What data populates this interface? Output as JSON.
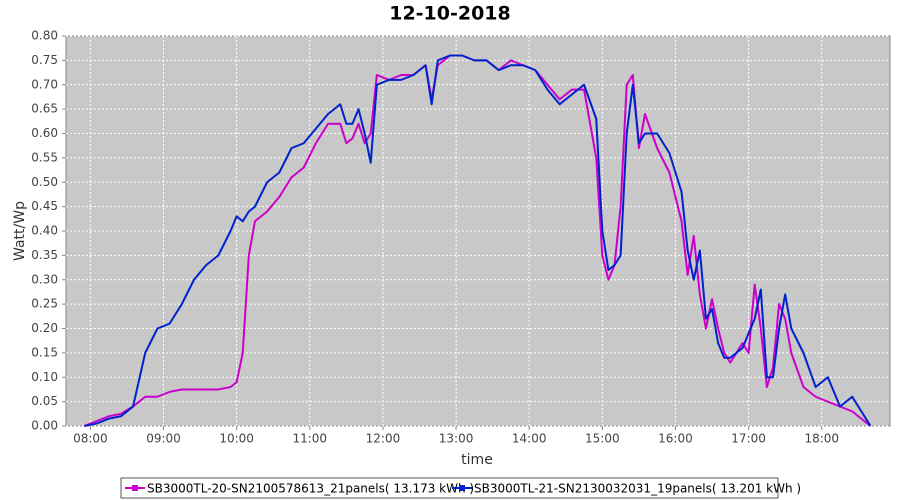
{
  "chart_data": {
    "type": "line",
    "title": "12-10-2018",
    "x_label": "time",
    "y_label": "Watt/Wp",
    "x": [
      "07:55",
      "08:05",
      "08:15",
      "08:25",
      "08:35",
      "08:45",
      "08:55",
      "09:05",
      "09:15",
      "09:25",
      "09:35",
      "09:45",
      "09:55",
      "10:00",
      "10:05",
      "10:10",
      "10:15",
      "10:25",
      "10:35",
      "10:45",
      "10:55",
      "11:05",
      "11:15",
      "11:25",
      "11:30",
      "11:35",
      "11:40",
      "11:45",
      "11:50",
      "11:55",
      "12:05",
      "12:15",
      "12:25",
      "12:35",
      "12:40",
      "12:45",
      "12:55",
      "13:05",
      "13:15",
      "13:25",
      "13:35",
      "13:45",
      "13:55",
      "14:05",
      "14:15",
      "14:25",
      "14:35",
      "14:45",
      "14:55",
      "15:00",
      "15:05",
      "15:10",
      "15:15",
      "15:20",
      "15:25",
      "15:30",
      "15:35",
      "15:45",
      "15:55",
      "16:05",
      "16:10",
      "16:15",
      "16:20",
      "16:25",
      "16:30",
      "16:35",
      "16:40",
      "16:45",
      "16:50",
      "16:55",
      "17:00",
      "17:05",
      "17:10",
      "17:15",
      "17:20",
      "17:25",
      "17:30",
      "17:35",
      "17:45",
      "17:55",
      "18:05",
      "18:15",
      "18:25",
      "18:35",
      "18:40"
    ],
    "series": [
      {
        "name": "SB3000TL-20-SN2100578613_21panels( 13.173 kWh )",
        "color": "#cc00cc",
        "values": [
          0.0,
          0.01,
          0.02,
          0.025,
          0.04,
          0.06,
          0.06,
          0.07,
          0.075,
          0.075,
          0.075,
          0.075,
          0.08,
          0.09,
          0.15,
          0.35,
          0.42,
          0.44,
          0.47,
          0.51,
          0.53,
          0.58,
          0.62,
          0.62,
          0.58,
          0.59,
          0.62,
          0.58,
          0.6,
          0.72,
          0.71,
          0.72,
          0.72,
          0.74,
          0.67,
          0.74,
          0.76,
          0.76,
          0.75,
          0.75,
          0.73,
          0.75,
          0.74,
          0.73,
          0.7,
          0.67,
          0.69,
          0.69,
          0.55,
          0.35,
          0.3,
          0.33,
          0.45,
          0.7,
          0.72,
          0.57,
          0.64,
          0.57,
          0.52,
          0.42,
          0.31,
          0.39,
          0.27,
          0.2,
          0.26,
          0.2,
          0.15,
          0.13,
          0.15,
          0.17,
          0.15,
          0.29,
          0.2,
          0.08,
          0.12,
          0.25,
          0.22,
          0.15,
          0.08,
          0.06,
          0.05,
          0.04,
          0.03,
          0.01,
          0.0
        ]
      },
      {
        "name": "SB3000TL-21-SN2130032031_19panels( 13.201 kWh )",
        "color": "#0022cc",
        "values": [
          0.0,
          0.005,
          0.015,
          0.02,
          0.04,
          0.15,
          0.2,
          0.21,
          0.25,
          0.3,
          0.33,
          0.35,
          0.4,
          0.43,
          0.42,
          0.44,
          0.45,
          0.5,
          0.52,
          0.57,
          0.58,
          0.61,
          0.64,
          0.66,
          0.62,
          0.62,
          0.65,
          0.6,
          0.54,
          0.7,
          0.71,
          0.71,
          0.72,
          0.74,
          0.66,
          0.75,
          0.76,
          0.76,
          0.75,
          0.75,
          0.73,
          0.74,
          0.74,
          0.73,
          0.69,
          0.66,
          0.68,
          0.7,
          0.63,
          0.4,
          0.32,
          0.33,
          0.35,
          0.6,
          0.7,
          0.58,
          0.6,
          0.6,
          0.56,
          0.48,
          0.36,
          0.3,
          0.36,
          0.22,
          0.24,
          0.17,
          0.14,
          0.14,
          0.15,
          0.16,
          0.19,
          0.22,
          0.28,
          0.1,
          0.1,
          0.2,
          0.27,
          0.2,
          0.15,
          0.08,
          0.1,
          0.04,
          0.06,
          0.02,
          0.0
        ]
      }
    ],
    "xlim": [
      "07:40",
      "18:56"
    ],
    "xticks": [
      "08:00",
      "09:00",
      "10:00",
      "11:00",
      "12:00",
      "13:00",
      "14:00",
      "15:00",
      "16:00",
      "17:00",
      "18:00"
    ],
    "ylim": [
      0,
      0.8
    ],
    "yticks": [
      {
        "value": 0,
        "label": "0.00"
      },
      {
        "value": 0.05,
        "label": "0.05"
      },
      {
        "value": 0.1,
        "label": "0.10"
      },
      {
        "value": 0.15,
        "label": "0.15"
      },
      {
        "value": 0.2,
        "label": "0.20"
      },
      {
        "value": 0.25,
        "label": "0.25"
      },
      {
        "value": 0.3,
        "label": "0.30"
      },
      {
        "value": 0.35,
        "label": "0.35"
      },
      {
        "value": 0.4,
        "label": "0.40"
      },
      {
        "value": 0.45,
        "label": "0.45"
      },
      {
        "value": 0.5,
        "label": "0.50"
      },
      {
        "value": 0.55,
        "label": "0.55"
      },
      {
        "value": 0.6,
        "label": "0.60"
      },
      {
        "value": 0.65,
        "label": "0.65"
      },
      {
        "value": 0.7,
        "label": "0.70"
      },
      {
        "value": 0.75,
        "label": "0.75"
      },
      {
        "value": 0.8,
        "label": "0.80"
      }
    ],
    "grid": true
  }
}
